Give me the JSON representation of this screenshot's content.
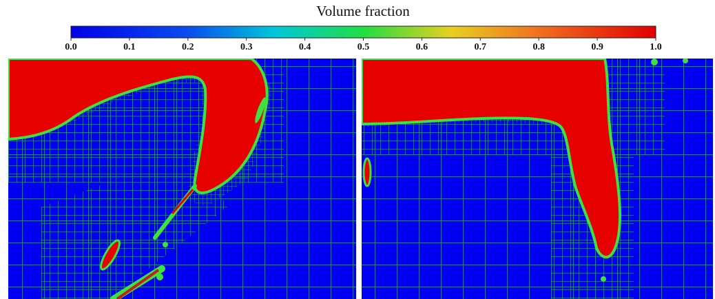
{
  "colorbar": {
    "title": "Volume fraction",
    "lim": [
      0,
      1
    ],
    "ticks": [
      {
        "value": 0,
        "label": "0.0"
      },
      {
        "value": 0.1,
        "label": "0.1"
      },
      {
        "value": 0.2,
        "label": "0.2"
      },
      {
        "value": 0.3,
        "label": "0.3"
      },
      {
        "value": 0.4,
        "label": "0.4"
      },
      {
        "value": 0.5,
        "label": "0.5"
      },
      {
        "value": 0.6,
        "label": "0.6"
      },
      {
        "value": 0.7,
        "label": "0.7"
      },
      {
        "value": 0.8,
        "label": "0.8"
      },
      {
        "value": 0.9,
        "label": "0.9"
      },
      {
        "value": 1,
        "label": "1.0"
      }
    ]
  }
}
